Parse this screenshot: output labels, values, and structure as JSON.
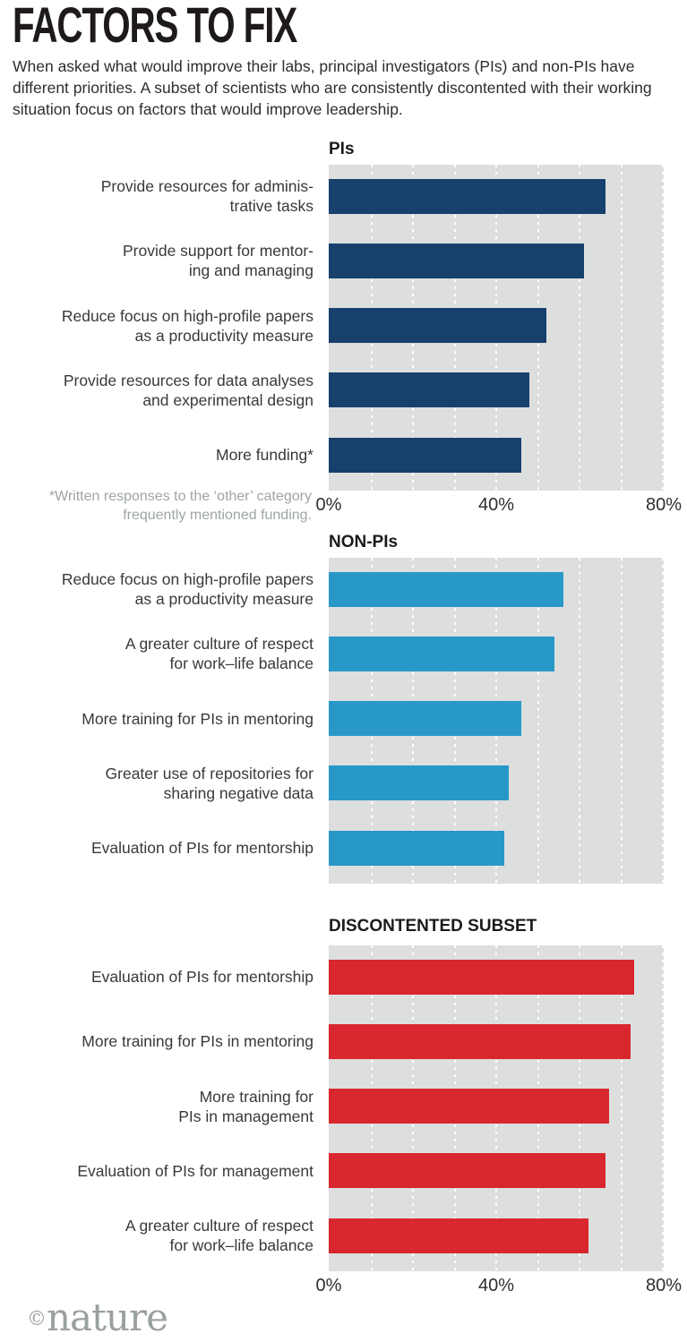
{
  "header": {
    "title": "FACTORS TO FIX",
    "subtitle": "When asked what would improve their labs, principal investigators (PIs) and non-PIs have different priorities. A subset of scientists who are consistently discontented with their working situation focus on factors that would improve leadership."
  },
  "footnote": "*Written responses to the ‘other’ category\nfrequently mentioned funding.",
  "brand": {
    "copyright": "©",
    "name": "nature"
  },
  "colors": {
    "pi_bar": "#17406d",
    "non_pi_bar": "#2798c8",
    "discontented_bar": "#d8272e",
    "plot_background": "#dcdfde",
    "gridline": "#ffffff",
    "footnote_gray": "#9fa5a5",
    "brand_gray": "#9aa0a0",
    "text_dark": "#1e1a1b"
  },
  "chart_data": [
    {
      "type": "bar",
      "orientation": "horizontal",
      "title": "PIs",
      "categories": [
        "Provide resources for adminis-\ntrative tasks",
        "Provide support for mentor-\ning and managing",
        "Reduce focus on high-profile papers\nas a productivity measure",
        "Provide resources for data analyses\nand experimental design",
        "More funding*"
      ],
      "values": [
        66,
        61,
        52,
        48,
        46
      ],
      "unit": "%",
      "xlim": [
        0,
        80
      ],
      "gridline_step_pct": 10,
      "x_ticks": [
        "0%",
        "40%",
        "80%"
      ],
      "bar_color": "#17406d"
    },
    {
      "type": "bar",
      "orientation": "horizontal",
      "title": "NON-PIs",
      "categories": [
        "Reduce focus on high-profile papers\nas a productivity measure",
        "A greater culture of respect\nfor work–life balance",
        "More training for PIs in mentoring",
        "Greater use of repositories for\nsharing negative data",
        "Evaluation of PIs for mentorship"
      ],
      "values": [
        56,
        54,
        46,
        43,
        42
      ],
      "unit": "%",
      "xlim": [
        0,
        80
      ],
      "gridline_step_pct": 10,
      "x_ticks": [],
      "bar_color": "#2798c8"
    },
    {
      "type": "bar",
      "orientation": "horizontal",
      "title": "DISCONTENTED SUBSET",
      "categories": [
        "Evaluation of PIs for mentorship",
        "More training for PIs in mentoring",
        "More training for\nPIs in management",
        "Evaluation of PIs for management",
        "A greater culture of respect\nfor work–life balance"
      ],
      "values": [
        73,
        72,
        67,
        66,
        62
      ],
      "unit": "%",
      "xlim": [
        0,
        80
      ],
      "gridline_step_pct": 10,
      "x_ticks": [
        "0%",
        "40%",
        "80%"
      ],
      "bar_color": "#d8272e"
    }
  ]
}
